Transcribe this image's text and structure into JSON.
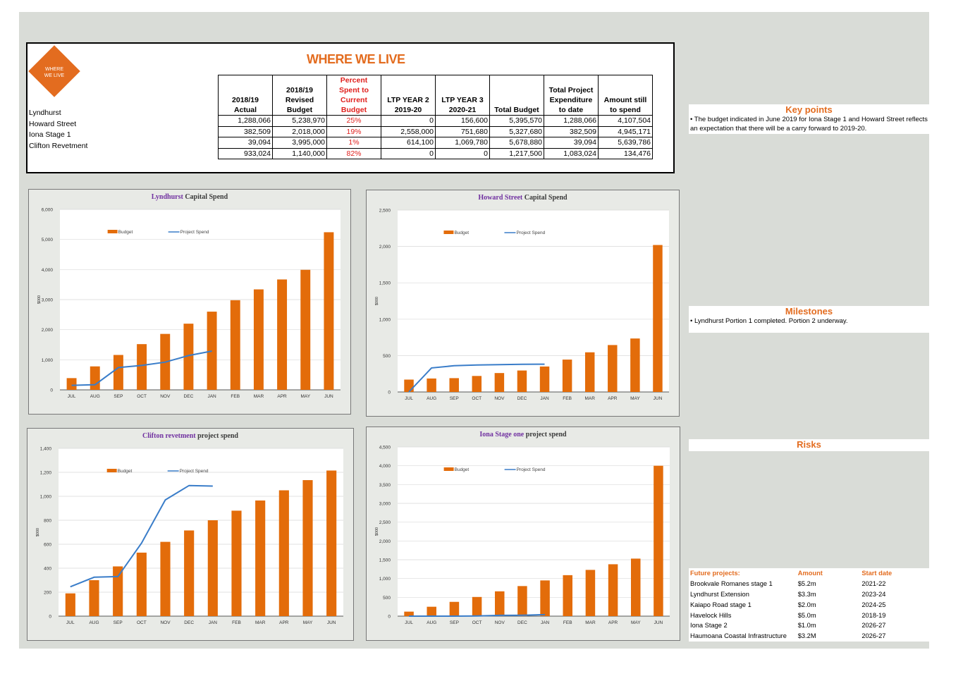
{
  "summary": {
    "logo_text": "WHERE\nWE LIVE",
    "title": "WHERE WE LIVE",
    "headers": [
      "2018/19 Actual",
      "2018/19 Revised Budget",
      "Percent Spent to Current Budget",
      "LTP YEAR 2 2019-20",
      "LTP YEAR 3 2020-21",
      "Total Budget",
      "Total Project Expenditure to date",
      "Amount still to spend"
    ],
    "rows": [
      {
        "name": "Lyndhurst",
        "cells": [
          "1,288,066",
          "5,238,970",
          "25%",
          "0",
          "156,600",
          "5,395,570",
          "1,288,066",
          "4,107,504"
        ]
      },
      {
        "name": "Howard Street",
        "cells": [
          "382,509",
          "2,018,000",
          "19%",
          "2,558,000",
          "751,680",
          "5,327,680",
          "382,509",
          "4,945,171"
        ]
      },
      {
        "name": "Iona Stage 1",
        "cells": [
          "39,094",
          "3,995,000",
          "1%",
          "614,100",
          "1,069,780",
          "5,678,880",
          "39,094",
          "5,639,786"
        ]
      },
      {
        "name": "Clifton Revetment",
        "cells": [
          "933,024",
          "1,140,000",
          "82%",
          "0",
          "0",
          "1,217,500",
          "1,083,024",
          "134,476"
        ]
      }
    ]
  },
  "colors": {
    "budget": "#e36c0a",
    "spend": "#3a7dc9",
    "accent": "#e36c1f",
    "title_purple": "#7030a0",
    "percent_red": "#e0201d"
  },
  "chart_data": [
    {
      "type": "bar",
      "title_highlight": "Lyndhurst",
      "title_rest": " Capital Spend",
      "ylabel": "$000",
      "categories": [
        "JUL",
        "AUG",
        "SEP",
        "OCT",
        "NOV",
        "DEC",
        "JAN",
        "FEB",
        "MAR",
        "APR",
        "MAY",
        "JUN"
      ],
      "ylim": [
        0,
        6000
      ],
      "yticks": [
        "0",
        "1,000",
        "2,000",
        "3,000",
        "4,000",
        "5,000",
        "6,000"
      ],
      "series": [
        {
          "name": "Budget",
          "kind": "bar",
          "values": [
            390,
            780,
            1160,
            1520,
            1860,
            2200,
            2600,
            2980,
            3340,
            3670,
            3990,
            5240
          ]
        },
        {
          "name": "Project Spend",
          "kind": "line",
          "values": [
            150,
            170,
            740,
            810,
            920,
            1140,
            1290,
            null,
            null,
            null,
            null,
            null
          ]
        }
      ]
    },
    {
      "type": "bar",
      "title_highlight": "Howard Street",
      "title_rest": " Capital Spend",
      "ylabel": "$000",
      "categories": [
        "JUL",
        "AUG",
        "SEP",
        "OCT",
        "NOV",
        "DEC",
        "JAN",
        "FEB",
        "MAR",
        "APR",
        "MAY",
        "JUN"
      ],
      "ylim": [
        0,
        2500
      ],
      "yticks": [
        "0",
        "500",
        "1,000",
        "1,500",
        "2,000",
        "2,500"
      ],
      "series": [
        {
          "name": "Budget",
          "kind": "bar",
          "values": [
            170,
            185,
            190,
            220,
            260,
            295,
            350,
            445,
            545,
            645,
            735,
            2020
          ]
        },
        {
          "name": "Project Spend",
          "kind": "line",
          "values": [
            0,
            330,
            360,
            370,
            375,
            380,
            382,
            null,
            null,
            null,
            null,
            null
          ]
        }
      ]
    },
    {
      "type": "bar",
      "title_highlight": "Clifton revetment",
      "title_rest": " project spend",
      "ylabel": "$000",
      "categories": [
        "JUL",
        "AUG",
        "SEP",
        "OCT",
        "NOV",
        "DEC",
        "JAN",
        "FEB",
        "MAR",
        "APR",
        "MAY",
        "JUN"
      ],
      "ylim": [
        0,
        1400
      ],
      "yticks": [
        "0",
        "200",
        "400",
        "600",
        "800",
        "1,000",
        "1,200",
        "1,400"
      ],
      "series": [
        {
          "name": "Budget",
          "kind": "bar",
          "values": [
            190,
            300,
            415,
            530,
            620,
            715,
            800,
            880,
            965,
            1050,
            1135,
            1215
          ]
        },
        {
          "name": "Project Spend",
          "kind": "line",
          "values": [
            245,
            325,
            330,
            610,
            970,
            1090,
            1085,
            null,
            null,
            null,
            null,
            null
          ]
        }
      ]
    },
    {
      "type": "bar",
      "title_highlight": "Iona Stage one",
      "title_rest": " project spend",
      "ylabel": "$000",
      "categories": [
        "JUL",
        "AUG",
        "SEP",
        "OCT",
        "NOV",
        "DEC",
        "JAN",
        "FEB",
        "MAR",
        "APR",
        "MAY",
        "JUN"
      ],
      "ylim": [
        0,
        4500
      ],
      "yticks": [
        "0",
        "500",
        "1,000",
        "1,500",
        "2,000",
        "2,500",
        "3,000",
        "3,500",
        "4,000",
        "4,500"
      ],
      "series": [
        {
          "name": "Budget",
          "kind": "bar",
          "values": [
            120,
            250,
            380,
            510,
            660,
            800,
            950,
            1090,
            1230,
            1380,
            1530,
            4000
          ]
        },
        {
          "name": "Project Spend",
          "kind": "line",
          "values": [
            0,
            0,
            0,
            5,
            20,
            25,
            39,
            null,
            null,
            null,
            null,
            null
          ]
        }
      ]
    }
  ],
  "key_points": {
    "heading": "Key points",
    "text": "• The budget indicated in June 2019 for Iona Stage 1 and Howard Street reflects an expectation that there will be a carry forward to 2019-20."
  },
  "milestones": {
    "heading": "Milestones",
    "text": "• Lyndhurst Portion 1 completed. Portion 2 underway."
  },
  "risks": {
    "heading": "Risks"
  },
  "future": {
    "headers": [
      "Future projects:",
      "Amount",
      "Start date"
    ],
    "rows": [
      [
        "Brookvale Romanes stage 1",
        "$5.2m",
        "2021-22"
      ],
      [
        "Lyndhurst Extension",
        "$3.3m",
        "2023-24"
      ],
      [
        "Kaiapo Road stage 1",
        "$2.0m",
        "2024-25"
      ],
      [
        "Havelock Hills",
        "$5.0m",
        "2018-19"
      ],
      [
        "Iona Stage 2",
        "$1.0m",
        "2026-27"
      ],
      [
        "Haumoana Coastal Infrastructure",
        "$3.2M",
        "2026-27"
      ]
    ]
  }
}
